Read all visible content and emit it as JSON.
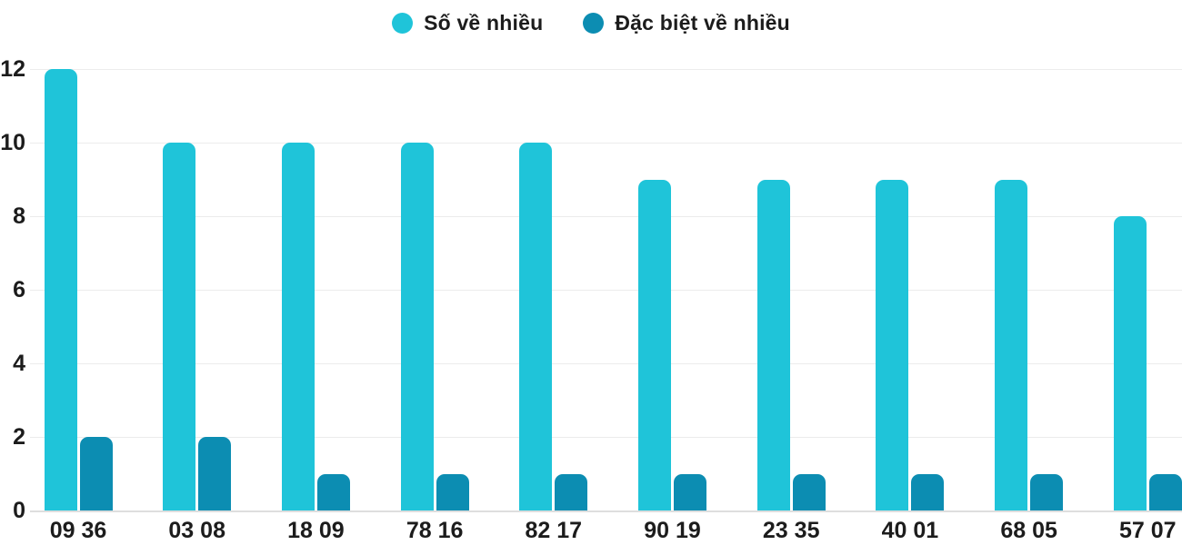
{
  "legend": {
    "items": [
      {
        "label": "Số về nhiều"
      },
      {
        "label": "Đặc biệt về nhiều"
      }
    ]
  },
  "chart_data": {
    "type": "bar",
    "title": "",
    "xlabel": "",
    "ylabel": "",
    "categories": [
      "09 36",
      "03 08",
      "18 09",
      "78 16",
      "82 17",
      "90 19",
      "23 35",
      "40 01",
      "68 05",
      "57 07"
    ],
    "series": [
      {
        "name": "Số về nhiều",
        "color": "#1fc4d9",
        "values": [
          12,
          10,
          10,
          10,
          10,
          9,
          9,
          9,
          9,
          8
        ]
      },
      {
        "name": "Đặc biệt về nhiều",
        "color": "#0c8db2",
        "values": [
          2,
          2,
          1,
          1,
          1,
          1,
          1,
          1,
          1,
          1
        ]
      }
    ],
    "ylim": [
      0,
      12
    ],
    "yticks": [
      0,
      2,
      4,
      6,
      8,
      10,
      12
    ],
    "grid": true,
    "legend_position": "top",
    "grid_color": "#ececec",
    "axis_text_color": "#1c1c1c"
  }
}
